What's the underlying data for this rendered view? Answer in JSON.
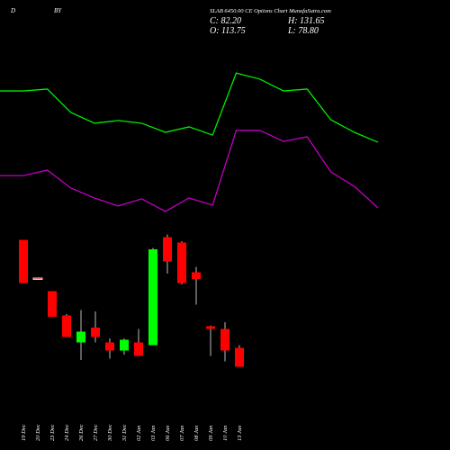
{
  "header": {
    "left": "D",
    "mid": "BY",
    "title": "SLAB 6450.00 CE Options Chart MunafaSutra.com",
    "close": "C: 82.20",
    "high": "H: 131.65",
    "open": "O: 113.75",
    "low": "L: 78.80"
  },
  "chart_data": [
    {
      "type": "line",
      "ylim": [
        0,
        100
      ],
      "series": [
        {
          "color": "#00ee00",
          "values": [
            78.4,
            78.4,
            79.5,
            65.8,
            59.5,
            61.1,
            59.5,
            54.2,
            57.4,
            52.6,
            88.9,
            85.3,
            78.4,
            79.5,
            61.6,
            54.2,
            48.4
          ]
        },
        {
          "color": "#c000c0",
          "values": [
            28.9,
            28.9,
            32.1,
            21.6,
            15.8,
            11.1,
            15.3,
            7.9,
            15.8,
            11.6,
            55.3,
            55.3,
            48.9,
            51.6,
            31.1,
            22.6,
            10
          ]
        }
      ]
    },
    {
      "type": "candlestick",
      "ylim": [
        0,
        100
      ],
      "up_color": "#00ff00",
      "down_color": "#ff0000",
      "categories": [
        "19 Dec",
        "20 Dec",
        "23 Dec",
        "24 Dec",
        "26 Dec",
        "27 Dec",
        "30 Dec",
        "31 Dec",
        "02 Jan",
        "03 Jan",
        "06 Jan",
        "07 Jan",
        "08 Jan",
        "09 Jan",
        "10 Jan",
        "13 Jan"
      ],
      "open": [
        99,
        70.7,
        61,
        43,
        23,
        34,
        23,
        17,
        23,
        21,
        101,
        97,
        75,
        35,
        33,
        19
      ],
      "high": [
        99,
        70.7,
        61,
        44,
        47,
        46,
        26,
        26,
        33,
        93,
        103,
        98,
        79,
        35.5,
        38,
        21
      ],
      "low": [
        67,
        70.7,
        42,
        27,
        10,
        23,
        11,
        14,
        13,
        21,
        74,
        66,
        51,
        13,
        9,
        5
      ],
      "close": [
        67,
        70.7,
        42,
        27,
        31,
        27,
        17,
        25,
        13,
        92,
        83,
        67,
        70,
        33,
        17,
        5
      ]
    }
  ]
}
